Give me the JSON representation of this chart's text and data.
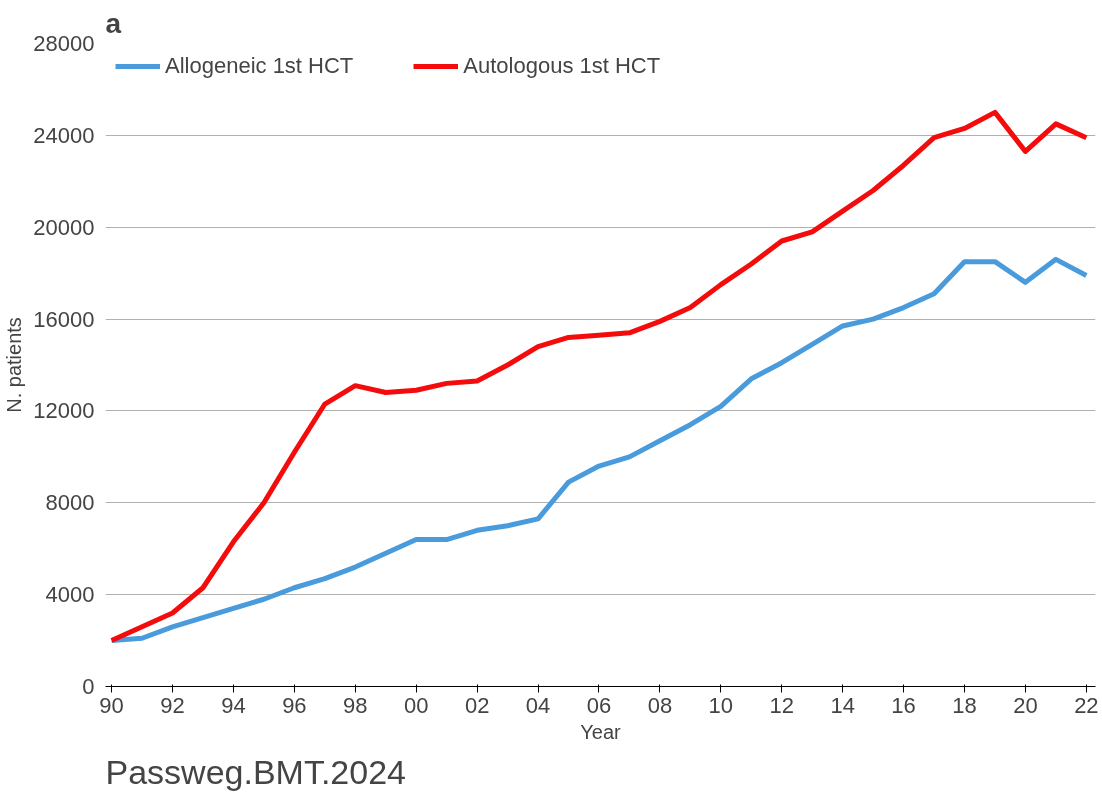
{
  "chart_data": {
    "type": "line",
    "title": "a",
    "xlabel": "Year",
    "ylabel": "N. patients",
    "x": [
      1990,
      1991,
      1992,
      1993,
      1994,
      1995,
      1996,
      1997,
      1998,
      1999,
      2000,
      2001,
      2002,
      2003,
      2004,
      2005,
      2006,
      2007,
      2008,
      2009,
      2010,
      2011,
      2012,
      2013,
      2014,
      2015,
      2016,
      2017,
      2018,
      2019,
      2020,
      2021,
      2022
    ],
    "series": [
      {
        "name": "Allogeneic 1st HCT",
        "color": "#4a9bdc",
        "values": [
          2000,
          2100,
          2600,
          3000,
          3400,
          3800,
          4300,
          4700,
          5200,
          5800,
          6400,
          6400,
          6800,
          7000,
          7300,
          8900,
          9600,
          10000,
          10700,
          11400,
          12200,
          13400,
          14100,
          14900,
          15700,
          16000,
          16500,
          17100,
          18500,
          18500,
          17600,
          18600,
          17900
        ]
      },
      {
        "name": "Autologous 1st HCT",
        "color": "#f40c0c",
        "values": [
          2000,
          2600,
          3200,
          4300,
          6300,
          8000,
          10200,
          12300,
          13100,
          12800,
          12900,
          13200,
          13300,
          14000,
          14800,
          15200,
          15300,
          15400,
          15900,
          16500,
          17500,
          18400,
          19400,
          19800,
          20700,
          21600,
          22700,
          23900,
          24300,
          25000,
          23300,
          24500,
          23900
        ]
      }
    ],
    "xlim": [
      1989.8,
      2022.3
    ],
    "xticks": [
      {
        "value": 1990,
        "label": "90"
      },
      {
        "value": 1992,
        "label": "92"
      },
      {
        "value": 1994,
        "label": "94"
      },
      {
        "value": 1996,
        "label": "96"
      },
      {
        "value": 1998,
        "label": "98"
      },
      {
        "value": 2000,
        "label": "00"
      },
      {
        "value": 2002,
        "label": "02"
      },
      {
        "value": 2004,
        "label": "04"
      },
      {
        "value": 2006,
        "label": "06"
      },
      {
        "value": 2008,
        "label": "08"
      },
      {
        "value": 2010,
        "label": "10"
      },
      {
        "value": 2012,
        "label": "12"
      },
      {
        "value": 2014,
        "label": "14"
      },
      {
        "value": 2016,
        "label": "16"
      },
      {
        "value": 2018,
        "label": "18"
      },
      {
        "value": 2020,
        "label": "20"
      },
      {
        "value": 2022,
        "label": "22"
      }
    ],
    "ylim": [
      0,
      28000
    ],
    "yticks": [
      0,
      4000,
      8000,
      12000,
      16000,
      20000,
      24000,
      28000
    ],
    "grid": "y",
    "legend": "top left",
    "marker": "none",
    "line_style": "solid",
    "annotations": [
      "Passweg.BMT.2024"
    ]
  }
}
